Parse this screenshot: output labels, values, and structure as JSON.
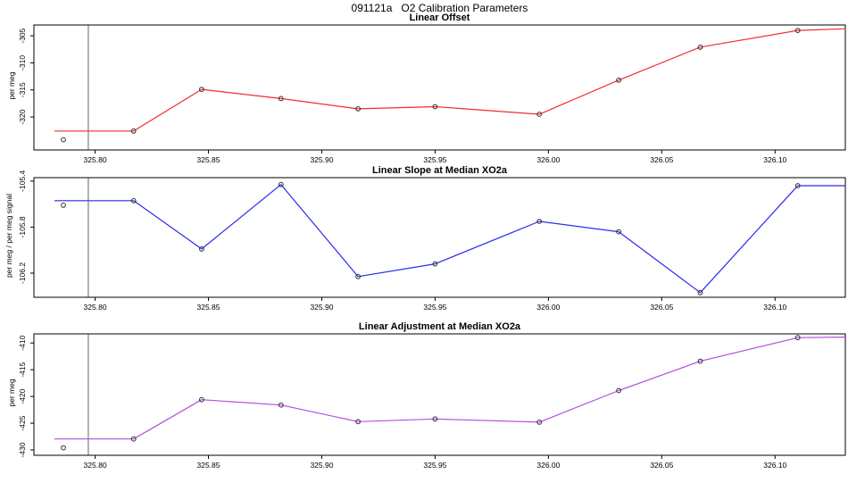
{
  "figure": {
    "title": "091121a   O2 Calibration Parameters"
  },
  "chart_data": [
    {
      "type": "line",
      "title": "Linear Offset",
      "xlabel": "",
      "ylabel": "per meg",
      "color": "#f32c2c",
      "marker": "open-circle",
      "marker_color": "#303030",
      "reference_line_color": "#666666",
      "reference_line_x": 325.797,
      "xlim": [
        325.773,
        326.131
      ],
      "ylim": [
        -326.1,
        -303.0
      ],
      "xticks": {
        "values": [
          325.8,
          325.85,
          325.9,
          325.95,
          326.0,
          326.05,
          326.1
        ],
        "labels": [
          "325.80",
          "325.85",
          "325.90",
          "325.95",
          "326.00",
          "326.05",
          "326.10"
        ]
      },
      "yticks": {
        "values": [
          -305,
          -310,
          -315,
          -320
        ],
        "labels": [
          "-305",
          "-310",
          "-315",
          "-320"
        ]
      },
      "line": {
        "x": [
          325.782,
          325.817,
          325.847,
          325.882,
          325.916,
          325.95,
          325.996,
          326.031,
          326.067,
          326.11,
          326.131
        ],
        "y": [
          -322.6,
          -322.6,
          -314.9,
          -316.6,
          -318.5,
          -318.1,
          -319.5,
          -313.2,
          -307.1,
          -304.0,
          -303.7
        ]
      },
      "points": {
        "x": [
          325.817,
          325.847,
          325.882,
          325.916,
          325.95,
          325.996,
          326.031,
          326.067,
          326.11
        ],
        "y": [
          -322.6,
          -314.9,
          -316.6,
          -318.5,
          -318.1,
          -319.5,
          -313.2,
          -307.1,
          -304.0
        ]
      },
      "outlier_point": {
        "x": 325.786,
        "y": -324.2
      }
    },
    {
      "type": "line",
      "title": "Linear Slope at Median XO2a",
      "xlabel": "",
      "ylabel": "per meg / per meg signal",
      "color": "#2a2af0",
      "marker": "open-circle",
      "marker_color": "#303030",
      "reference_line_color": "#666666",
      "reference_line_x": 325.797,
      "xlim": [
        325.773,
        326.131
      ],
      "ylim": [
        -106.41,
        -105.37
      ],
      "xticks": {
        "values": [
          325.8,
          325.85,
          325.9,
          325.95,
          326.0,
          326.05,
          326.1
        ],
        "labels": [
          "325.80",
          "325.85",
          "325.90",
          "325.95",
          "326.00",
          "326.05",
          "326.10"
        ]
      },
      "yticks": {
        "values": [
          -105.4,
          -105.8,
          -106.2
        ],
        "labels": [
          "-105.4",
          "-105.8",
          "-106.2"
        ]
      },
      "line": {
        "x": [
          325.782,
          325.817,
          325.847,
          325.882,
          325.916,
          325.95,
          325.996,
          326.031,
          326.067,
          326.11,
          326.131
        ],
        "y": [
          -105.57,
          -105.57,
          -105.99,
          -105.43,
          -106.23,
          -106.12,
          -105.75,
          -105.84,
          -106.37,
          -105.44,
          -105.44
        ]
      },
      "points": {
        "x": [
          325.817,
          325.847,
          325.882,
          325.916,
          325.95,
          325.996,
          326.031,
          326.067,
          326.11
        ],
        "y": [
          -105.57,
          -105.99,
          -105.43,
          -106.23,
          -106.12,
          -105.75,
          -105.84,
          -106.37,
          -105.44
        ]
      },
      "outlier_point": {
        "x": 325.786,
        "y": -105.61
      }
    },
    {
      "type": "line",
      "title": "Linear Adjustment at Median XO2a",
      "xlabel": "",
      "ylabel": "per meg",
      "color": "#b44fdd",
      "marker": "open-circle",
      "marker_color": "#303030",
      "reference_line_color": "#666666",
      "reference_line_x": 325.797,
      "xlim": [
        325.773,
        326.131
      ],
      "ylim": [
        -431.0,
        -408.3
      ],
      "xticks": {
        "values": [
          325.8,
          325.85,
          325.9,
          325.95,
          326.0,
          326.05,
          326.1
        ],
        "labels": [
          "325.80",
          "325.85",
          "325.90",
          "325.95",
          "326.00",
          "326.05",
          "326.10"
        ]
      },
      "yticks": {
        "values": [
          -410,
          -415,
          -420,
          -425,
          -430
        ],
        "labels": [
          "-410",
          "-415",
          "-420",
          "-425",
          "-430"
        ]
      },
      "line": {
        "x": [
          325.782,
          325.817,
          325.847,
          325.882,
          325.916,
          325.95,
          325.996,
          326.031,
          326.067,
          326.11,
          326.131
        ],
        "y": [
          -427.95,
          -427.95,
          -420.6,
          -421.6,
          -424.7,
          -424.2,
          -424.8,
          -418.9,
          -413.4,
          -409.0,
          -408.9
        ]
      },
      "points": {
        "x": [
          325.817,
          325.847,
          325.882,
          325.916,
          325.95,
          325.996,
          326.031,
          326.067,
          326.11
        ],
        "y": [
          -427.95,
          -420.6,
          -421.6,
          -424.7,
          -424.2,
          -424.8,
          -418.9,
          -413.4,
          -409.0
        ]
      },
      "outlier_point": {
        "x": 325.786,
        "y": -429.6
      }
    }
  ]
}
